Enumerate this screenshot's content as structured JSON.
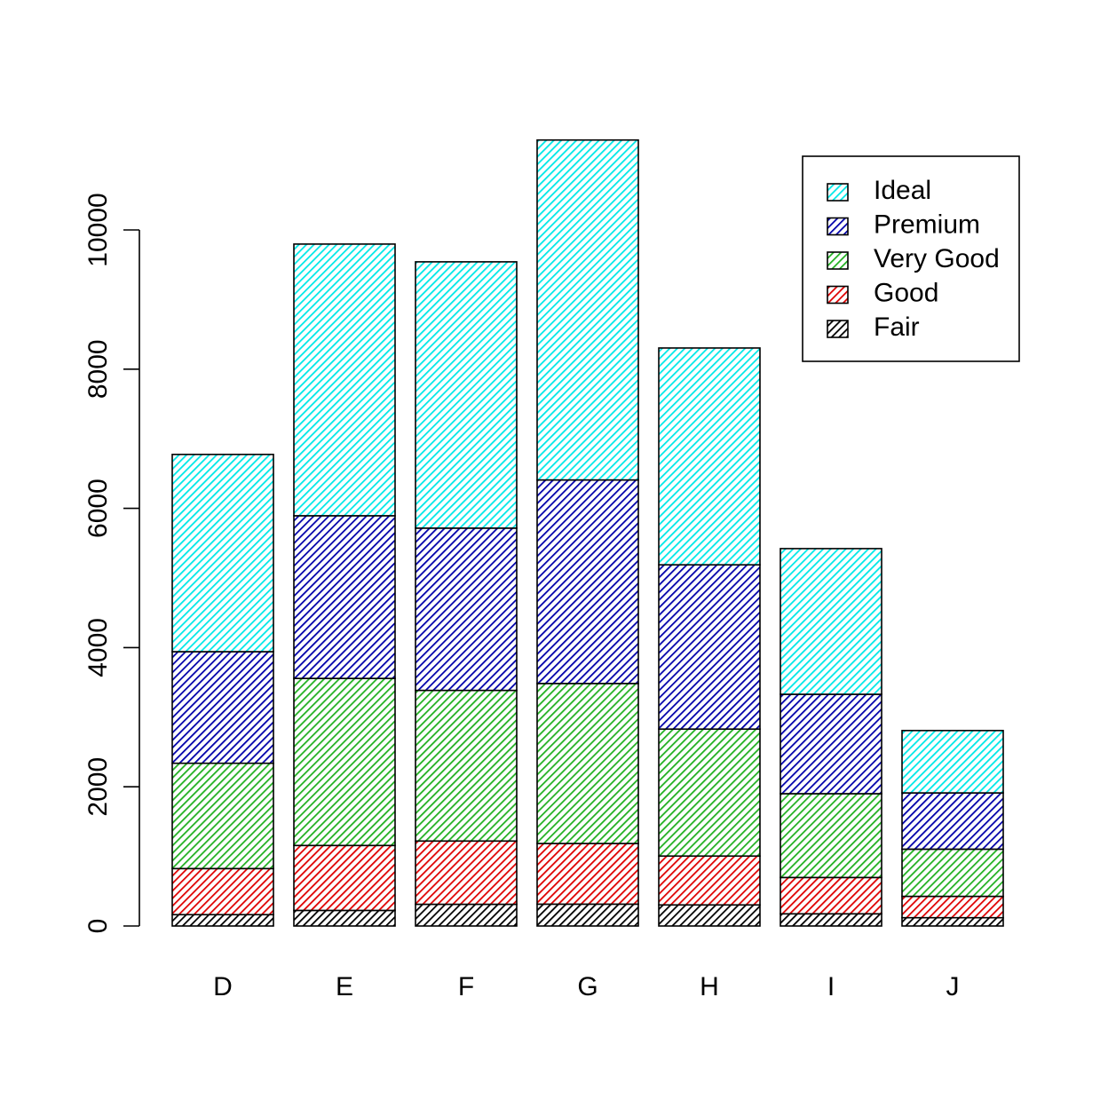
{
  "chart_data": {
    "type": "bar",
    "stacked": true,
    "title": "",
    "xlabel": "",
    "ylabel": "",
    "categories": [
      "D",
      "E",
      "F",
      "G",
      "H",
      "I",
      "J"
    ],
    "ylim": [
      0,
      11300
    ],
    "yticks": [
      0,
      2000,
      4000,
      6000,
      8000,
      10000
    ],
    "ytick_labels": [
      "0",
      "2000",
      "4000",
      "6000",
      "8000",
      "10000"
    ],
    "grid": false,
    "legend_position": "top-right",
    "legend_order": [
      "Ideal",
      "Premium",
      "Very Good",
      "Good",
      "Fair"
    ],
    "series": [
      {
        "name": "Fair",
        "color": "#000000",
        "values": [
          163,
          224,
          312,
          314,
          303,
          175,
          119
        ]
      },
      {
        "name": "Good",
        "color": "#DF0000",
        "values": [
          662,
          933,
          909,
          871,
          702,
          522,
          307
        ]
      },
      {
        "name": "Very Good",
        "color": "#22B022",
        "values": [
          1513,
          2400,
          2164,
          2299,
          1824,
          1204,
          678
        ]
      },
      {
        "name": "Premium",
        "color": "#0000AA",
        "values": [
          1603,
          2337,
          2331,
          2924,
          2360,
          1428,
          808
        ]
      },
      {
        "name": "Ideal",
        "color": "#00E8E8",
        "values": [
          2834,
          3903,
          3826,
          4884,
          3115,
          2093,
          896
        ]
      }
    ]
  }
}
